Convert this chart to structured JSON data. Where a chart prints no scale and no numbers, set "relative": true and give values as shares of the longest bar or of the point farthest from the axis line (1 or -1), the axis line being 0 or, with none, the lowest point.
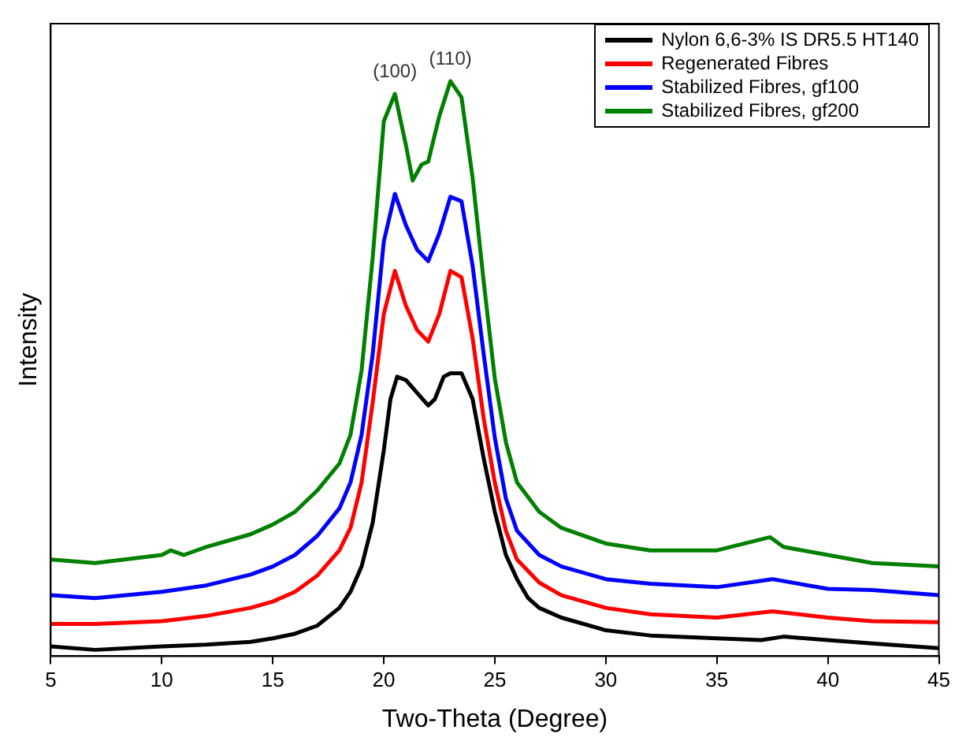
{
  "chart_data": {
    "type": "line",
    "xlabel": "Two-Theta (Degree)",
    "ylabel": "Intensity",
    "relative": true,
    "xlim": [
      5,
      45
    ],
    "xticks": [
      5,
      10,
      15,
      20,
      25,
      30,
      35,
      40,
      45
    ],
    "grid": false,
    "legend": "top right",
    "marker": "none",
    "line_style": "solid",
    "annotations": [
      {
        "text": "(100)",
        "x": 20.5,
        "y": 0.978
      },
      {
        "text": "(110)",
        "x": 23,
        "y": 1
      }
    ],
    "series": [
      {
        "name": "Nylon 6,6-3% IS DR5.5 HT140",
        "color": "#000000",
        "x": [
          5,
          7,
          10,
          12,
          14,
          15,
          16,
          17,
          18,
          18.5,
          19,
          19.5,
          20,
          20.3,
          20.6,
          21,
          21.5,
          22,
          22.3,
          22.7,
          23,
          23.5,
          24,
          24.5,
          25,
          25.5,
          26,
          26.5,
          27,
          28,
          30,
          32,
          35,
          37,
          38,
          40,
          42,
          45
        ],
        "values": [
          0.017,
          0.011,
          0.017,
          0.02,
          0.025,
          0.031,
          0.039,
          0.053,
          0.084,
          0.112,
          0.156,
          0.232,
          0.358,
          0.447,
          0.486,
          0.48,
          0.458,
          0.436,
          0.447,
          0.486,
          0.492,
          0.492,
          0.447,
          0.344,
          0.251,
          0.176,
          0.134,
          0.101,
          0.084,
          0.067,
          0.045,
          0.036,
          0.031,
          0.028,
          0.034,
          0.028,
          0.022,
          0.014
        ]
      },
      {
        "name": "Regenerated Fibres",
        "color": "#ff0000",
        "x": [
          5,
          7,
          10,
          12,
          14,
          15,
          16,
          17,
          18,
          18.5,
          19,
          19.5,
          20,
          20.5,
          21,
          21.5,
          22,
          22.5,
          23,
          23.5,
          24,
          24.5,
          25,
          25.5,
          26,
          27,
          28,
          30,
          32,
          35,
          37.5,
          40,
          42,
          45
        ],
        "values": [
          0.056,
          0.056,
          0.061,
          0.07,
          0.084,
          0.095,
          0.112,
          0.14,
          0.184,
          0.223,
          0.302,
          0.441,
          0.595,
          0.67,
          0.609,
          0.567,
          0.547,
          0.595,
          0.67,
          0.659,
          0.553,
          0.413,
          0.302,
          0.218,
          0.168,
          0.128,
          0.106,
          0.084,
          0.073,
          0.067,
          0.078,
          0.067,
          0.061,
          0.059
        ]
      },
      {
        "name": "Stabilized Fibres, gf100",
        "color": "#0000ff",
        "x": [
          5,
          7,
          10,
          12,
          14,
          15,
          16,
          17,
          18,
          18.5,
          19,
          19.5,
          20,
          20.5,
          21,
          21.5,
          22,
          22.5,
          23,
          23.5,
          24,
          24.5,
          25,
          25.5,
          26,
          27,
          28,
          30,
          32,
          35,
          37.5,
          40,
          42,
          45
        ],
        "values": [
          0.106,
          0.101,
          0.112,
          0.123,
          0.142,
          0.156,
          0.176,
          0.209,
          0.257,
          0.302,
          0.385,
          0.525,
          0.721,
          0.804,
          0.749,
          0.707,
          0.687,
          0.735,
          0.799,
          0.791,
          0.679,
          0.525,
          0.38,
          0.274,
          0.218,
          0.176,
          0.156,
          0.134,
          0.126,
          0.12,
          0.134,
          0.117,
          0.115,
          0.106
        ]
      },
      {
        "name": "Stabilized Fibres, gf200",
        "color": "#008000",
        "x": [
          5,
          7,
          10,
          10.4,
          11,
          12,
          14,
          15,
          16,
          17,
          18,
          18.5,
          19,
          19.5,
          20,
          20.5,
          21,
          21.3,
          21.7,
          22,
          22.5,
          23,
          23.5,
          24,
          24.5,
          25,
          25.5,
          26,
          27,
          28,
          30,
          32,
          35,
          37.4,
          38,
          40,
          42,
          45
        ],
        "values": [
          0.168,
          0.162,
          0.176,
          0.184,
          0.176,
          0.19,
          0.212,
          0.229,
          0.251,
          0.288,
          0.335,
          0.385,
          0.497,
          0.693,
          0.93,
          0.978,
          0.888,
          0.827,
          0.855,
          0.86,
          0.939,
          1,
          0.972,
          0.832,
          0.651,
          0.483,
          0.372,
          0.302,
          0.251,
          0.223,
          0.196,
          0.184,
          0.184,
          0.207,
          0.19,
          0.176,
          0.162,
          0.156
        ]
      }
    ]
  }
}
